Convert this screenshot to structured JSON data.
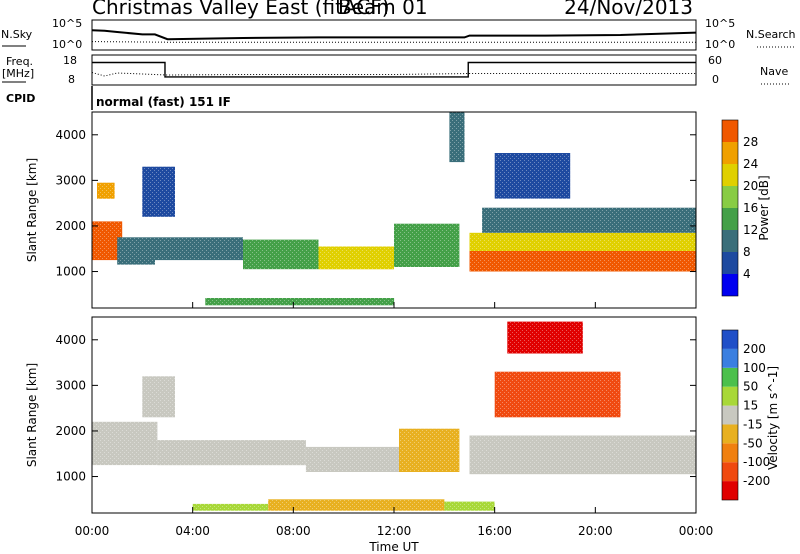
{
  "header": {
    "title": "Christmas Valley East (fitACF)",
    "beam": "Beam 01",
    "date": "24/Nov/2013"
  },
  "sky_panel": {
    "left_label": "N.Sky",
    "right_label": "N.Search",
    "left_ticks": [
      "10^5",
      "10^0"
    ],
    "right_ticks": [
      "10^5",
      "10^0"
    ]
  },
  "freq_panel": {
    "left_label": "Freq.",
    "left_unit": "[MHz]",
    "left_ticks": [
      "18",
      "8"
    ],
    "right_label": "Nave",
    "right_ticks": [
      "60",
      "0"
    ]
  },
  "cpid": {
    "label": "CPID",
    "value": "normal (fast) 151 IF"
  },
  "x_axis": {
    "label": "Time UT",
    "ticks": [
      "00:00",
      "04:00",
      "08:00",
      "12:00",
      "16:00",
      "20:00",
      "00:00"
    ]
  },
  "colors": {
    "power_scale": [
      "#0000f0",
      "#1e4aa0",
      "#3a6e7a",
      "#44a048",
      "#88cc44",
      "#e0d000",
      "#f0a000",
      "#f05800",
      "#e80000"
    ],
    "velocity_scale": [
      "#1f4fc8",
      "#3a7fe0",
      "#4cc04c",
      "#a8d838",
      "#c8c8c0",
      "#e8b020",
      "#f08010",
      "#f04a10",
      "#e00000"
    ]
  },
  "chart_data": [
    {
      "type": "line",
      "title": "N.Sky / N.Search",
      "x_range_hours": [
        0,
        24
      ],
      "left_ylim_log10": [
        0,
        5
      ],
      "series": [
        {
          "name": "N.Sky",
          "style": "solid",
          "x": [
            0,
            0.5,
            1,
            2,
            2.5,
            3,
            6,
            9,
            12,
            14.8,
            15,
            18,
            21,
            24
          ],
          "y_log10": [
            3.3,
            3.2,
            3.0,
            2.6,
            2.6,
            1.8,
            2.0,
            2.1,
            2.1,
            2.1,
            2.4,
            2.4,
            2.5,
            2.9
          ]
        },
        {
          "name": "N.Search",
          "style": "dotted",
          "x": [
            0,
            3,
            6,
            9,
            12,
            15,
            18,
            21,
            24
          ],
          "y_log10": [
            1.4,
            1.3,
            1.3,
            1.3,
            1.3,
            1.3,
            1.3,
            1.3,
            1.3
          ]
        }
      ]
    },
    {
      "type": "line",
      "title": "Freq. / Nave",
      "x_range_hours": [
        0,
        24
      ],
      "left_ylim": [
        8,
        18
      ],
      "right_ylim": [
        0,
        60
      ],
      "series": [
        {
          "name": "Freq.",
          "style": "solid",
          "x": [
            0,
            2.9,
            2.9,
            14.95,
            14.95,
            24
          ],
          "y": [
            15.5,
            15.5,
            10.7,
            10.7,
            15.5,
            15.5
          ]
        },
        {
          "name": "Nave",
          "style": "dotted",
          "x": [
            0,
            0.5,
            1,
            3,
            6,
            9,
            12,
            15,
            18,
            21,
            24
          ],
          "y": [
            25,
            18,
            24,
            20,
            21,
            21,
            21,
            23,
            23,
            23,
            23
          ]
        }
      ]
    },
    {
      "type": "heatmap",
      "title": "Power",
      "xlabel": "Time UT",
      "ylabel": "Slant Range [km]",
      "x_range_hours": [
        0,
        24
      ],
      "ylim": [
        200,
        4500
      ],
      "y_ticks": [
        1000,
        2000,
        3000,
        4000
      ],
      "colorbar": {
        "label": "Power [dB]",
        "ticks": [
          4,
          8,
          12,
          16,
          20,
          24,
          28
        ],
        "range": [
          0,
          32
        ]
      },
      "regions": [
        {
          "t0": 0.0,
          "t1": 1.2,
          "r_bottom": 1250,
          "r_top": 2100,
          "level": 26
        },
        {
          "t0": 0.2,
          "t1": 0.9,
          "r_bottom": 2600,
          "r_top": 2950,
          "level": 22
        },
        {
          "t0": 1.0,
          "t1": 2.5,
          "r_bottom": 1150,
          "r_top": 1750,
          "level": 10
        },
        {
          "t0": 2.5,
          "t1": 6.0,
          "r_bottom": 1250,
          "r_top": 1750,
          "level": 8
        },
        {
          "t0": 6.0,
          "t1": 9.0,
          "r_bottom": 1050,
          "r_top": 1700,
          "level": 12
        },
        {
          "t0": 9.0,
          "t1": 12.0,
          "r_bottom": 1050,
          "r_top": 1550,
          "level": 20
        },
        {
          "t0": 12.0,
          "t1": 14.6,
          "r_bottom": 1100,
          "r_top": 2050,
          "level": 14
        },
        {
          "t0": 15.0,
          "t1": 24.0,
          "r_bottom": 1000,
          "r_top": 1450,
          "level": 28
        },
        {
          "t0": 15.0,
          "t1": 24.0,
          "r_bottom": 1450,
          "r_top": 1850,
          "level": 18
        },
        {
          "t0": 15.5,
          "t1": 24.0,
          "r_bottom": 1850,
          "r_top": 2400,
          "level": 8
        },
        {
          "t0": 4.5,
          "t1": 12.0,
          "r_bottom": 260,
          "r_top": 420,
          "level": 14
        },
        {
          "t0": 2.0,
          "t1": 3.3,
          "r_bottom": 2200,
          "r_top": 3300,
          "level": 6
        },
        {
          "t0": 14.2,
          "t1": 14.8,
          "r_bottom": 3400,
          "r_top": 4500,
          "level": 8
        },
        {
          "t0": 16.0,
          "t1": 19.0,
          "r_bottom": 2600,
          "r_top": 3600,
          "level": 5
        }
      ]
    },
    {
      "type": "heatmap",
      "title": "Velocity",
      "xlabel": "Time UT",
      "ylabel": "Slant Range [km]",
      "x_range_hours": [
        0,
        24
      ],
      "ylim": [
        200,
        4500
      ],
      "y_ticks": [
        1000,
        2000,
        3000,
        4000
      ],
      "colorbar": {
        "label": "Velocity [m s^-1]",
        "ticks": [
          200,
          100,
          50,
          15,
          -15,
          -50,
          -100,
          -200
        ],
        "range": [
          -250,
          250
        ]
      },
      "regions": [
        {
          "t0": 0.0,
          "t1": 2.6,
          "r_bottom": 1250,
          "r_top": 2200,
          "level": 0
        },
        {
          "t0": 2.6,
          "t1": 8.5,
          "r_bottom": 1250,
          "r_top": 1800,
          "level": 0
        },
        {
          "t0": 8.5,
          "t1": 12.2,
          "r_bottom": 1100,
          "r_top": 1650,
          "level": 0
        },
        {
          "t0": 12.2,
          "t1": 14.6,
          "r_bottom": 1100,
          "r_top": 2050,
          "level": -45
        },
        {
          "t0": 15.0,
          "t1": 24.0,
          "r_bottom": 1050,
          "r_top": 1900,
          "level": 0
        },
        {
          "t0": 2.0,
          "t1": 3.3,
          "r_bottom": 2300,
          "r_top": 3200,
          "level": 0
        },
        {
          "t0": 4.0,
          "t1": 7.0,
          "r_bottom": 250,
          "r_top": 400,
          "level": 30
        },
        {
          "t0": 7.0,
          "t1": 14.0,
          "r_bottom": 250,
          "r_top": 500,
          "level": -40
        },
        {
          "t0": 14.0,
          "t1": 16.0,
          "r_bottom": 250,
          "r_top": 450,
          "level": 30
        },
        {
          "t0": 16.0,
          "t1": 21.0,
          "r_bottom": 2300,
          "r_top": 3300,
          "level": -120
        },
        {
          "t0": 16.5,
          "t1": 19.5,
          "r_bottom": 3700,
          "r_top": 4400,
          "level": -180
        }
      ]
    }
  ]
}
